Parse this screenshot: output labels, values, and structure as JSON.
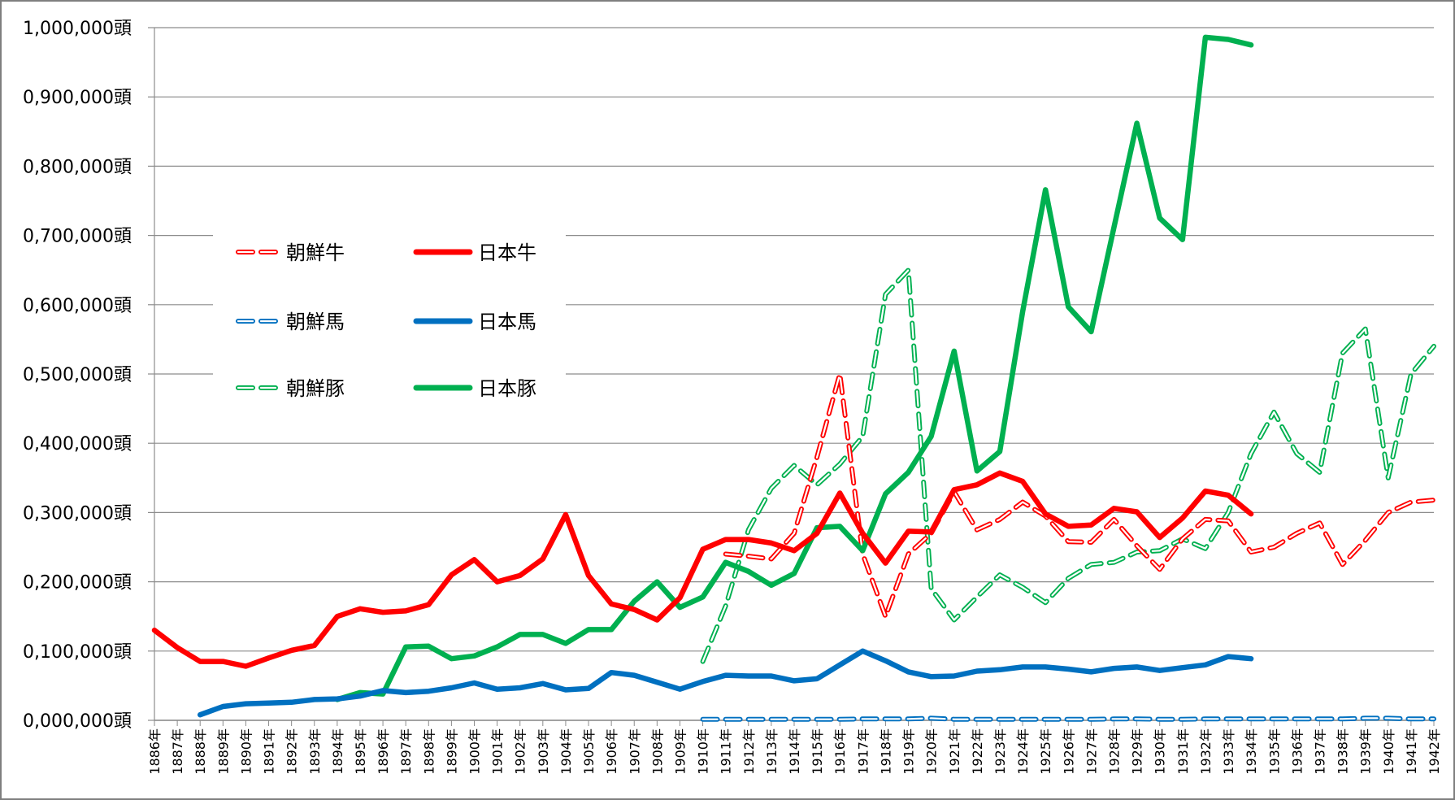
{
  "chart_data": {
    "type": "line",
    "y_unit": "頭",
    "ylim": [
      0,
      1000000
    ],
    "y_ticks": [
      0,
      100000,
      200000,
      300000,
      400000,
      500000,
      600000,
      700000,
      800000,
      900000,
      1000000
    ],
    "y_tick_labels": [
      "0,000,000頭",
      "0,100,000頭",
      "0,200,000頭",
      "0,300,000頭",
      "0,400,000頭",
      "0,500,000頭",
      "0,600,000頭",
      "0,700,000頭",
      "0,800,000頭",
      "0,900,000頭",
      "1,000,000頭"
    ],
    "grid": true,
    "legend_position": "upper-left",
    "categories": [
      "1886年",
      "1887年",
      "1888年",
      "1889年",
      "1890年",
      "1891年",
      "1892年",
      "1893年",
      "1894年",
      "1895年",
      "1896年",
      "1897年",
      "1898年",
      "1899年",
      "1900年",
      "1901年",
      "1902年",
      "1903年",
      "1904年",
      "1905年",
      "1906年",
      "1907年",
      "1908年",
      "1909年",
      "1910年",
      "1911年",
      "1912年",
      "1913年",
      "1914年",
      "1915年",
      "1916年",
      "1917年",
      "1918年",
      "1919年",
      "1920年",
      "1921年",
      "1922年",
      "1923年",
      "1924年",
      "1925年",
      "1926年",
      "1927年",
      "1928年",
      "1929年",
      "1930年",
      "1931年",
      "1932年",
      "1933年",
      "1934年",
      "1935年",
      "1936年",
      "1937年",
      "1938年",
      "1939年",
      "1940年",
      "1941年",
      "1942年"
    ],
    "series": [
      {
        "name": "朝鮮牛",
        "color": "#ff0000",
        "style": "dashed",
        "values": [
          null,
          null,
          null,
          null,
          null,
          null,
          null,
          null,
          null,
          null,
          null,
          null,
          null,
          null,
          null,
          null,
          null,
          null,
          null,
          null,
          null,
          null,
          null,
          null,
          null,
          240000,
          237000,
          233000,
          270000,
          380000,
          500000,
          240000,
          150000,
          240000,
          270000,
          330000,
          275000,
          290000,
          315000,
          295000,
          258000,
          257000,
          290000,
          252000,
          218000,
          262000,
          290000,
          288000,
          243000,
          250000,
          270000,
          285000,
          225000,
          260000,
          300000,
          315000,
          318000
        ]
      },
      {
        "name": "日本牛",
        "color": "#ff0000",
        "style": "solid",
        "values": [
          130000,
          105000,
          85000,
          85000,
          78000,
          90000,
          101000,
          108000,
          150000,
          161000,
          156000,
          158000,
          167000,
          210000,
          232000,
          200000,
          209000,
          233000,
          297000,
          209000,
          168000,
          160000,
          145000,
          177000,
          247000,
          261000,
          261000,
          256000,
          245000,
          270000,
          328000,
          270000,
          227000,
          273000,
          272000,
          333000,
          340000,
          357000,
          345000,
          298000,
          280000,
          282000,
          306000,
          301000,
          264000,
          292000,
          331000,
          325000,
          298000,
          null,
          null,
          null,
          null,
          null,
          null,
          null,
          null
        ]
      },
      {
        "name": "朝鮮馬",
        "color": "#0070c0",
        "style": "dashed",
        "values": [
          null,
          null,
          null,
          null,
          null,
          null,
          null,
          null,
          null,
          null,
          null,
          null,
          null,
          null,
          null,
          null,
          null,
          null,
          null,
          null,
          null,
          null,
          null,
          null,
          1500,
          1500,
          1500,
          1500,
          1500,
          1500,
          1500,
          2000,
          2000,
          2000,
          3000,
          1500,
          1500,
          1500,
          1500,
          1500,
          1500,
          1500,
          2000,
          2000,
          1500,
          1500,
          2000,
          2000,
          2000,
          2000,
          2000,
          2000,
          2000,
          3000,
          3000,
          2000,
          2000
        ]
      },
      {
        "name": "日本馬",
        "color": "#0070c0",
        "style": "solid",
        "values": [
          null,
          null,
          8000,
          20000,
          24000,
          25000,
          26000,
          30000,
          31000,
          35000,
          43000,
          40000,
          42000,
          47000,
          54000,
          45000,
          47000,
          53000,
          44000,
          46000,
          69000,
          65000,
          55000,
          45000,
          56000,
          65000,
          64000,
          64000,
          57000,
          60000,
          80000,
          100000,
          86000,
          70000,
          63000,
          64000,
          71000,
          73000,
          77000,
          77000,
          74000,
          70000,
          75000,
          77000,
          72000,
          76000,
          80000,
          92000,
          89000,
          null,
          null,
          null,
          null,
          null,
          null,
          null,
          null
        ]
      },
      {
        "name": "朝鮮豚",
        "color": "#00b050",
        "style": "dashed",
        "values": [
          null,
          null,
          null,
          null,
          null,
          null,
          null,
          null,
          null,
          null,
          null,
          null,
          null,
          null,
          null,
          null,
          null,
          null,
          null,
          null,
          null,
          null,
          null,
          null,
          85000,
          165000,
          275000,
          335000,
          368000,
          340000,
          370000,
          410000,
          615000,
          650000,
          190000,
          145000,
          178000,
          210000,
          192000,
          170000,
          205000,
          225000,
          228000,
          243000,
          245000,
          262000,
          248000,
          300000,
          385000,
          445000,
          385000,
          358000,
          530000,
          565000,
          350000,
          500000,
          540000
        ]
      },
      {
        "name": "日本豚",
        "color": "#00b050",
        "style": "solid",
        "values": [
          null,
          null,
          null,
          null,
          null,
          null,
          null,
          null,
          30000,
          40000,
          38000,
          106000,
          107000,
          89000,
          93000,
          106000,
          124000,
          124000,
          111000,
          131000,
          131000,
          172000,
          200000,
          163000,
          178000,
          228000,
          215000,
          195000,
          212000,
          278000,
          280000,
          245000,
          327000,
          358000,
          410000,
          533000,
          360000,
          388000,
          590000,
          766000,
          597000,
          561000,
          712000,
          862000,
          725000,
          694000,
          986000,
          983000,
          975000,
          null,
          null,
          null,
          null,
          null,
          null,
          null,
          null
        ]
      }
    ]
  }
}
